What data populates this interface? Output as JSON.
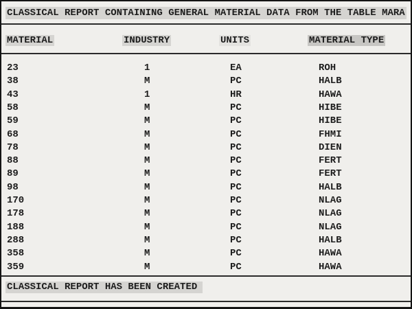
{
  "report": {
    "title": "CLASSICAL REPORT CONTAINING GENERAL MATERIAL DATA FROM THE TABLE MARA",
    "columns": [
      {
        "key": "material",
        "label": "MATERIAL"
      },
      {
        "key": "industry",
        "label": "INDUSTRY"
      },
      {
        "key": "units",
        "label": "UNITS"
      },
      {
        "key": "material_type",
        "label": "MATERIAL TYPE"
      }
    ],
    "rows": [
      {
        "material": "23",
        "industry": "1",
        "units": "EA",
        "material_type": "ROH"
      },
      {
        "material": "38",
        "industry": "M",
        "units": "PC",
        "material_type": "HALB"
      },
      {
        "material": "43",
        "industry": "1",
        "units": "HR",
        "material_type": "HAWA"
      },
      {
        "material": "58",
        "industry": "M",
        "units": "PC",
        "material_type": "HIBE"
      },
      {
        "material": "59",
        "industry": "M",
        "units": "PC",
        "material_type": "HIBE"
      },
      {
        "material": "68",
        "industry": "M",
        "units": "PC",
        "material_type": "FHMI"
      },
      {
        "material": "78",
        "industry": "M",
        "units": "PC",
        "material_type": "DIEN"
      },
      {
        "material": "88",
        "industry": "M",
        "units": "PC",
        "material_type": "FERT"
      },
      {
        "material": "89",
        "industry": "M",
        "units": "PC",
        "material_type": "FERT"
      },
      {
        "material": "98",
        "industry": "M",
        "units": "PC",
        "material_type": "HALB"
      },
      {
        "material": "170",
        "industry": "M",
        "units": "PC",
        "material_type": "NLAG"
      },
      {
        "material": "178",
        "industry": "M",
        "units": "PC",
        "material_type": "NLAG"
      },
      {
        "material": "188",
        "industry": "M",
        "units": "PC",
        "material_type": "NLAG"
      },
      {
        "material": "288",
        "industry": "M",
        "units": "PC",
        "material_type": "HALB"
      },
      {
        "material": "358",
        "industry": "M",
        "units": "PC",
        "material_type": "HAWA"
      },
      {
        "material": "359",
        "industry": "M",
        "units": "PC",
        "material_type": "HAWA"
      }
    ],
    "footer": "CLASSICAL REPORT HAS BEEN CREATED"
  },
  "colors": {
    "background": "#f0efec",
    "highlight": "#d5d4d1",
    "highlight_dark": "#c7c6c3",
    "highlight_subtle": "#e3e2df",
    "text": "#1c1c1c",
    "line": "#2b2b2b"
  }
}
